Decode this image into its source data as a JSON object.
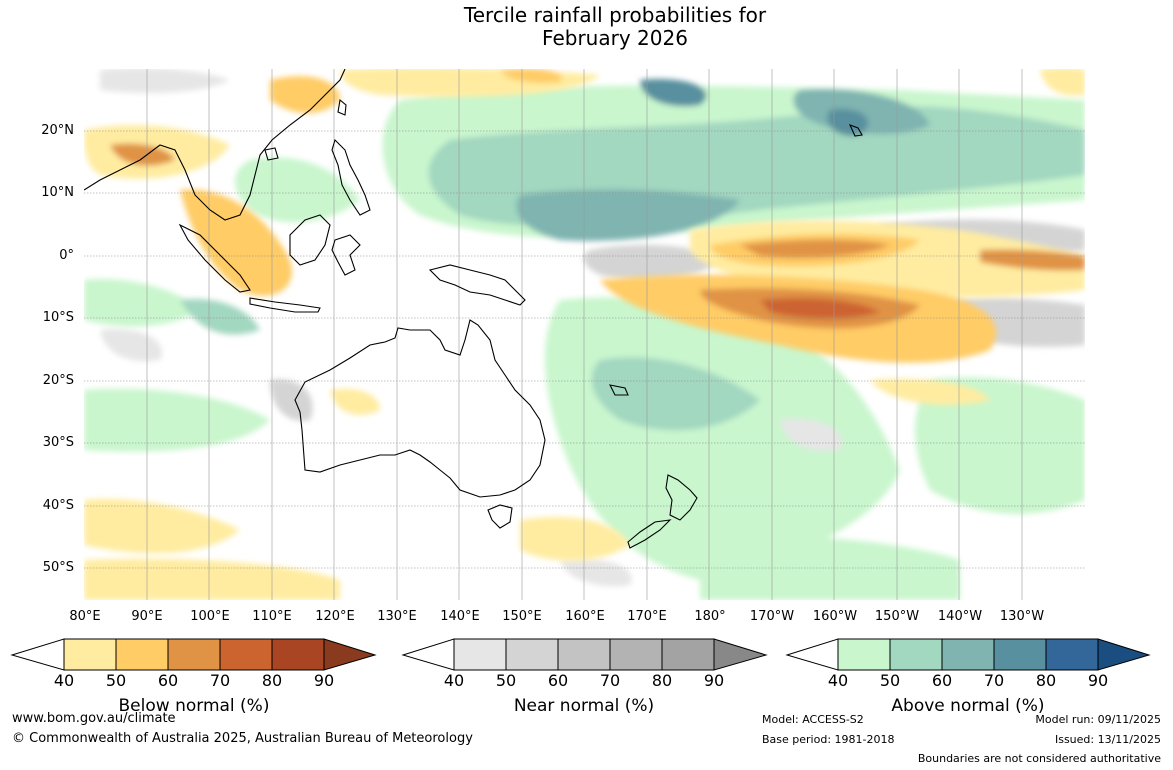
{
  "title": {
    "line1": "Tercile rainfall probabilities for",
    "line2": "February 2026"
  },
  "axes": {
    "lat_labels": [
      "20°N",
      "10°N",
      "0°",
      "10°S",
      "20°S",
      "30°S",
      "40°S",
      "50°S"
    ],
    "lon_labels": [
      "80°E",
      "90°E",
      "100°E",
      "110°E",
      "120°E",
      "130°E",
      "140°E",
      "150°E",
      "160°E",
      "170°E",
      "180°",
      "170°W",
      "160°W",
      "150°W",
      "140°W",
      "130°W"
    ]
  },
  "colorbars": [
    {
      "label": "Below normal (%)",
      "ticks": [
        "40",
        "50",
        "60",
        "70",
        "80",
        "90"
      ],
      "colors": [
        "#fff",
        "#ffeca0",
        "#ffcc66",
        "#e09344",
        "#cc6430",
        "#aa4524",
        "#8a3a1e"
      ]
    },
    {
      "label": "Near normal (%)",
      "ticks": [
        "40",
        "50",
        "60",
        "70",
        "80",
        "90"
      ],
      "colors": [
        "#fff",
        "#e6e6e6",
        "#d4d4d4",
        "#c3c3c3",
        "#b3b3b3",
        "#a3a3a3",
        "#888888"
      ]
    },
    {
      "label": "Above normal (%)",
      "ticks": [
        "40",
        "50",
        "60",
        "70",
        "80",
        "90"
      ],
      "colors": [
        "#fff",
        "#c9f6cd",
        "#a2d7c0",
        "#7fb4b0",
        "#58909f",
        "#336699",
        "#1a4d80"
      ]
    }
  ],
  "footer": {
    "url": "www.bom.gov.au/climate",
    "copyright": "© Commonwealth of Australia 2025, Australian Bureau of Meteorology",
    "model": "Model: ACCESS-S2",
    "base_period": "Base period: 1981-2018",
    "model_run": "Model run: 09/11/2025",
    "issued": "Issued: 13/11/2025",
    "disclaimer": "Boundaries are not considered authoritative"
  },
  "colors": {
    "below": "#ffcc66",
    "near": "#d4d4d4",
    "above": "#a2d7c0"
  }
}
